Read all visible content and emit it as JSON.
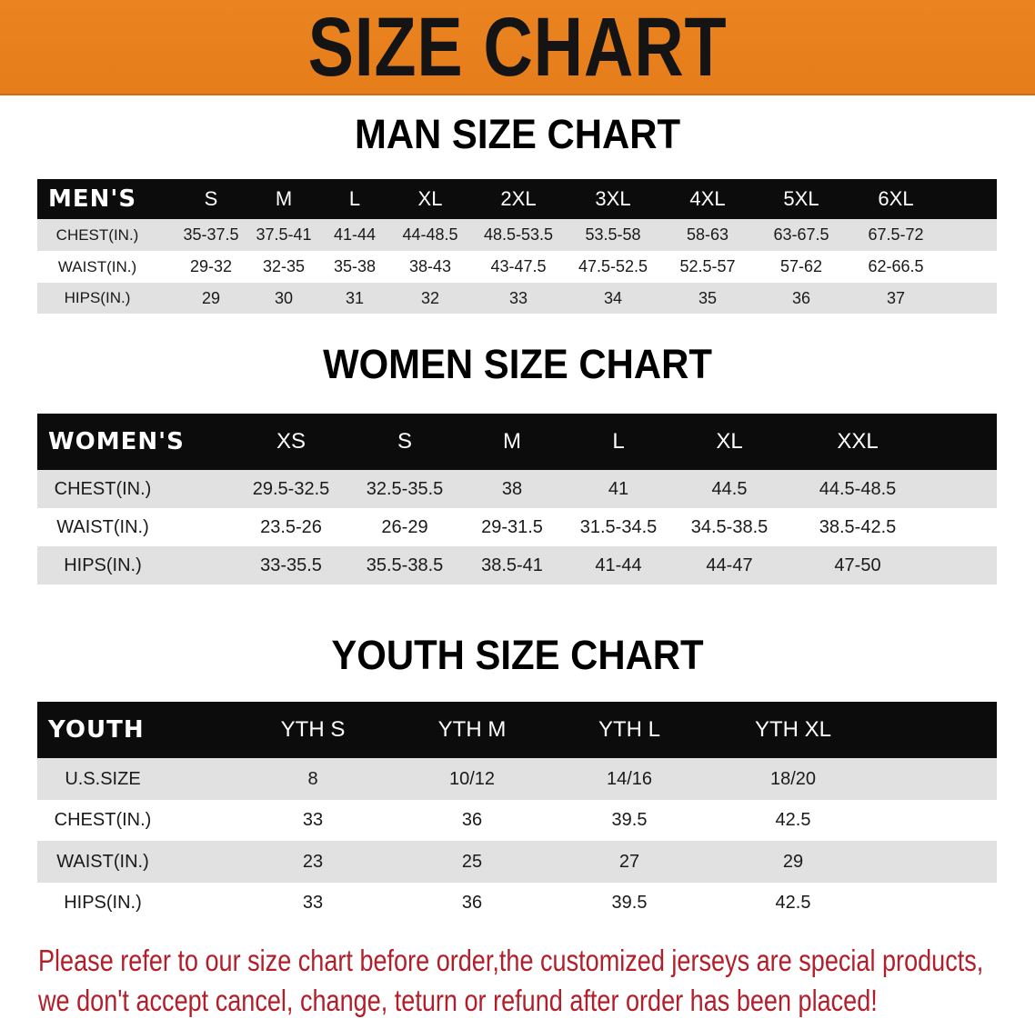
{
  "banner": {
    "title": "SIZE CHART",
    "color": "#e8801e"
  },
  "men": {
    "title": "MAN SIZE CHART",
    "header": "MEN'S",
    "sizes": [
      "S",
      "M",
      "L",
      "XL",
      "2XL",
      "3XL",
      "4XL",
      "5XL",
      "6XL"
    ],
    "rows": [
      {
        "label": "CHEST(IN.)",
        "values": [
          "35-37.5",
          "37.5-41",
          "41-44",
          "44-48.5",
          "48.5-53.5",
          "53.5-58",
          "58-63",
          "63-67.5",
          "67.5-72"
        ]
      },
      {
        "label": "WAIST(IN.)",
        "values": [
          "29-32",
          "32-35",
          "35-38",
          "38-43",
          "43-47.5",
          "47.5-52.5",
          "52.5-57",
          "57-62",
          "62-66.5"
        ]
      },
      {
        "label": "HIPS(IN.)",
        "values": [
          "29",
          "30",
          "31",
          "32",
          "33",
          "34",
          "35",
          "36",
          "37"
        ]
      }
    ]
  },
  "women": {
    "title": "WOMEN SIZE CHART",
    "header": "WOMEN'S",
    "sizes": [
      "XS",
      "S",
      "M",
      "L",
      "XL",
      "XXL"
    ],
    "rows": [
      {
        "label": "CHEST(IN.)",
        "values": [
          "29.5-32.5",
          "32.5-35.5",
          "38",
          "41",
          "44.5",
          "44.5-48.5"
        ]
      },
      {
        "label": "WAIST(IN.)",
        "values": [
          "23.5-26",
          "26-29",
          "29-31.5",
          "31.5-34.5",
          "34.5-38.5",
          "38.5-42.5"
        ]
      },
      {
        "label": "HIPS(IN.)",
        "values": [
          "33-35.5",
          "35.5-38.5",
          "38.5-41",
          "41-44",
          "44-47",
          "47-50"
        ]
      }
    ]
  },
  "youth": {
    "title": "YOUTH SIZE CHART",
    "header": "YOUTH",
    "sizes": [
      "YTH S",
      "YTH M",
      "YTH L",
      "YTH XL"
    ],
    "rows": [
      {
        "label": "U.S.SIZE",
        "values": [
          "8",
          "10/12",
          "14/16",
          "18/20"
        ]
      },
      {
        "label": "CHEST(IN.)",
        "values": [
          "33",
          "36",
          "39.5",
          "42.5"
        ]
      },
      {
        "label": "WAIST(IN.)",
        "values": [
          "23",
          "25",
          "27",
          "29"
        ]
      },
      {
        "label": "HIPS(IN.)",
        "values": [
          "33",
          "36",
          "39.5",
          "42.5"
        ]
      }
    ]
  },
  "note": {
    "line1": "Please refer to our size chart before order,the customized jerseys are special products,",
    "line2": "we don't accept cancel, change, teturn or refund after order has been placed!",
    "color": "#b21f2b"
  }
}
